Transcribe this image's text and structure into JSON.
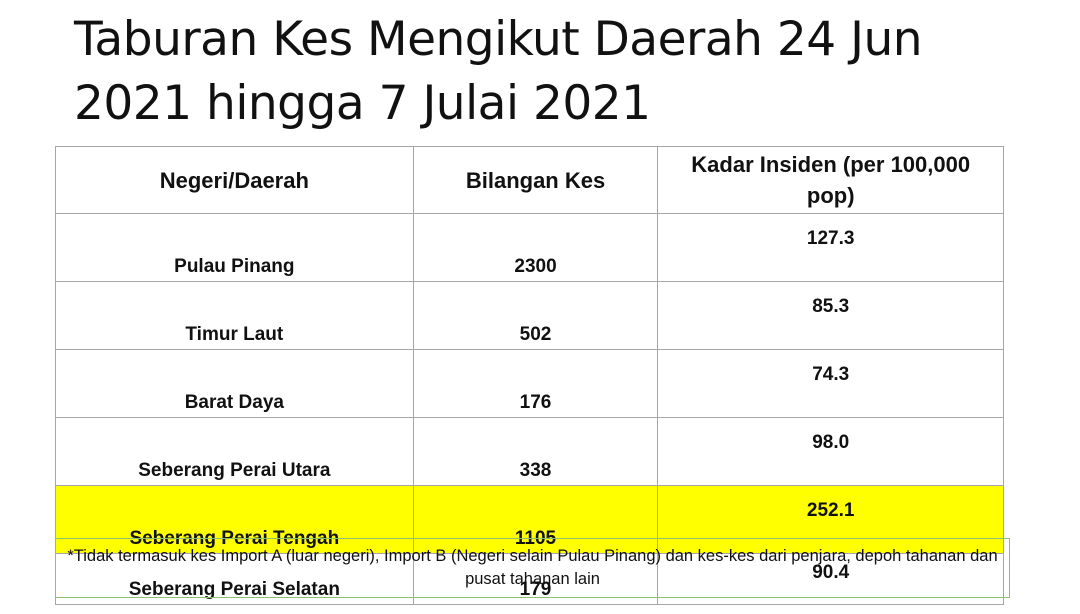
{
  "title": "Taburan Kes Mengikut Daerah 24 Jun 2021 hingga 7 Julai 2021",
  "table": {
    "headers": [
      "Negeri/Daerah",
      "Bilangan Kes",
      "Kadar Insiden (per 100,000 pop)"
    ],
    "rows": [
      {
        "region": "Pulau Pinang",
        "cases": "2300",
        "rate": "127.3",
        "highlight": false
      },
      {
        "region": "Timur Laut",
        "cases": "502",
        "rate": "85.3",
        "highlight": false
      },
      {
        "region": "Barat Daya",
        "cases": "176",
        "rate": "74.3",
        "highlight": false
      },
      {
        "region": "Seberang Perai Utara",
        "cases": "338",
        "rate": "98.0",
        "highlight": false
      },
      {
        "region": "Seberang Perai Tengah",
        "cases": "1105",
        "rate": "252.1",
        "highlight": true
      },
      {
        "region": "Seberang Perai Selatan",
        "cases": "179",
        "rate": "90.4",
        "highlight": false
      }
    ],
    "highlight_color": "#ffff00"
  },
  "footnote": "*Tidak termasuk kes Import A (luar negeri), Import B (Negeri selain Pulau Pinang) dan kes-kes dari penjara, depoh tahanan dan pusat tahanan lain"
}
